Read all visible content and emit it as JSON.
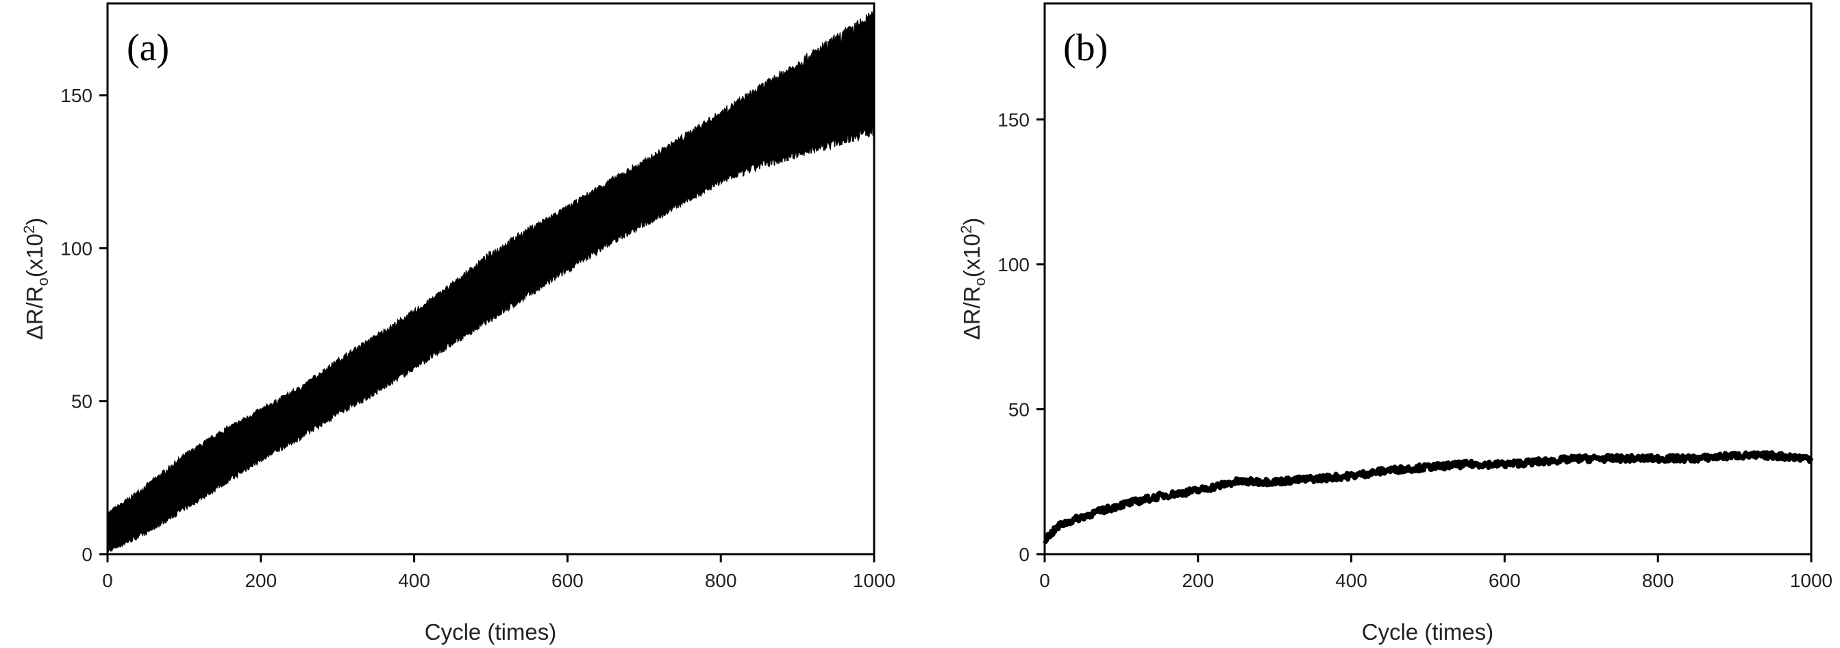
{
  "chart_data": [
    {
      "type": "area",
      "panel_label": "(a)",
      "xlabel": "Cycle (times)",
      "ylabel": "ΔR/Ro(x10²)",
      "ylabel_parts": {
        "main": "ΔR/R",
        "sub": "o",
        "paren_open": "(x10",
        "sup": "2",
        "paren_close": ")"
      },
      "xlim": [
        0,
        1000
      ],
      "ylim": [
        0,
        180
      ],
      "xticks": [
        0,
        200,
        400,
        600,
        800,
        1000
      ],
      "yticks": [
        0,
        50,
        100,
        150
      ],
      "grid": false,
      "series": [
        {
          "color": "#000000",
          "x": [
            0,
            50,
            100,
            150,
            200,
            250,
            300,
            350,
            400,
            450,
            500,
            550,
            600,
            650,
            700,
            750,
            800,
            850,
            900,
            950,
            1000
          ],
          "lower": [
            1,
            7,
            15,
            23,
            31,
            38,
            46,
            53,
            61,
            69,
            77,
            85,
            93,
            101,
            108,
            115,
            122,
            127,
            131,
            135,
            139
          ],
          "upper": [
            13,
            22,
            32,
            40,
            47,
            54,
            63,
            71,
            79,
            88,
            98,
            106,
            113,
            121,
            128,
            136,
            144,
            152,
            160,
            168,
            176
          ]
        }
      ]
    },
    {
      "type": "line",
      "panel_label": "(b)",
      "xlabel": "Cycle (times)",
      "ylabel": "ΔR/Ro(x10²)",
      "ylabel_parts": {
        "main": "ΔR/R",
        "sub": "o",
        "paren_open": "(x10",
        "sup": "2",
        "paren_close": ")"
      },
      "xlim": [
        0,
        1000
      ],
      "ylim": [
        0,
        190
      ],
      "xticks": [
        0,
        200,
        400,
        600,
        800,
        1000
      ],
      "yticks": [
        0,
        50,
        100,
        150
      ],
      "grid": false,
      "series": [
        {
          "color": "#000000",
          "x": [
            0,
            20,
            50,
            100,
            150,
            200,
            250,
            300,
            350,
            400,
            450,
            500,
            550,
            600,
            650,
            700,
            750,
            800,
            850,
            900,
            950,
            1000
          ],
          "y": [
            5,
            10,
            13,
            17,
            20,
            22,
            25,
            25,
            26,
            27,
            29,
            30,
            31,
            31,
            32,
            33,
            33,
            33,
            33,
            34,
            34,
            33
          ]
        }
      ]
    }
  ]
}
